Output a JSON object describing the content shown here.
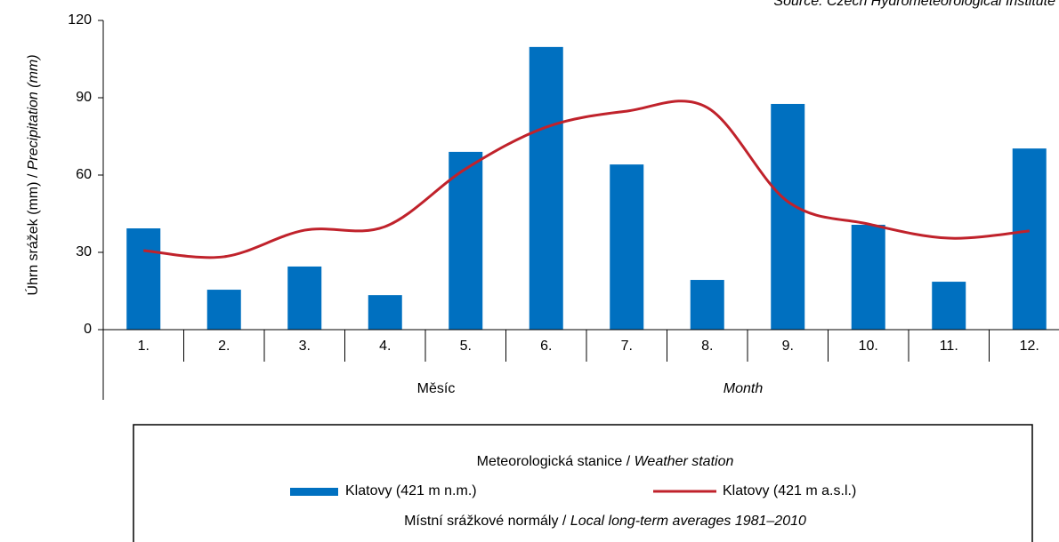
{
  "chart_data": {
    "type": "bar",
    "source": "Source: Czech Hydrometeorological Institute",
    "y_label": [
      "Úhrn srážek (mm) /",
      "Precipitation (mm)"
    ],
    "x_label": [
      "Měsíc",
      "Month"
    ],
    "legend_title": [
      "Meteorologická stanice /",
      "Weather station"
    ],
    "legend_note": [
      "Místní srážkové normály /",
      "Local long-term averages 1981–2010"
    ],
    "categories": [
      "1.",
      "2.",
      "3.",
      "4.",
      "5.",
      "6.",
      "7.",
      "8.",
      "9.",
      "10.",
      "11.",
      "12."
    ],
    "series": [
      {
        "name": "Klatovy (421 m n.m.)",
        "type": "bar",
        "color": "#0070c0",
        "values": [
          39.3,
          15.5,
          24.5,
          13.4,
          69,
          109.7,
          64.1,
          19.3,
          87.6,
          40.7,
          18.6,
          70.3
        ]
      },
      {
        "name": "Klatovy (421 m a.s.l.)",
        "type": "line",
        "color": "#c0222b",
        "values": [
          30.7,
          28.3,
          38.6,
          40,
          62.4,
          78.6,
          84.8,
          86.2,
          49.7,
          41,
          35.5,
          38.3
        ]
      }
    ],
    "ylim": [
      0,
      120
    ],
    "yticks": [
      0,
      30,
      60,
      90,
      120
    ]
  }
}
